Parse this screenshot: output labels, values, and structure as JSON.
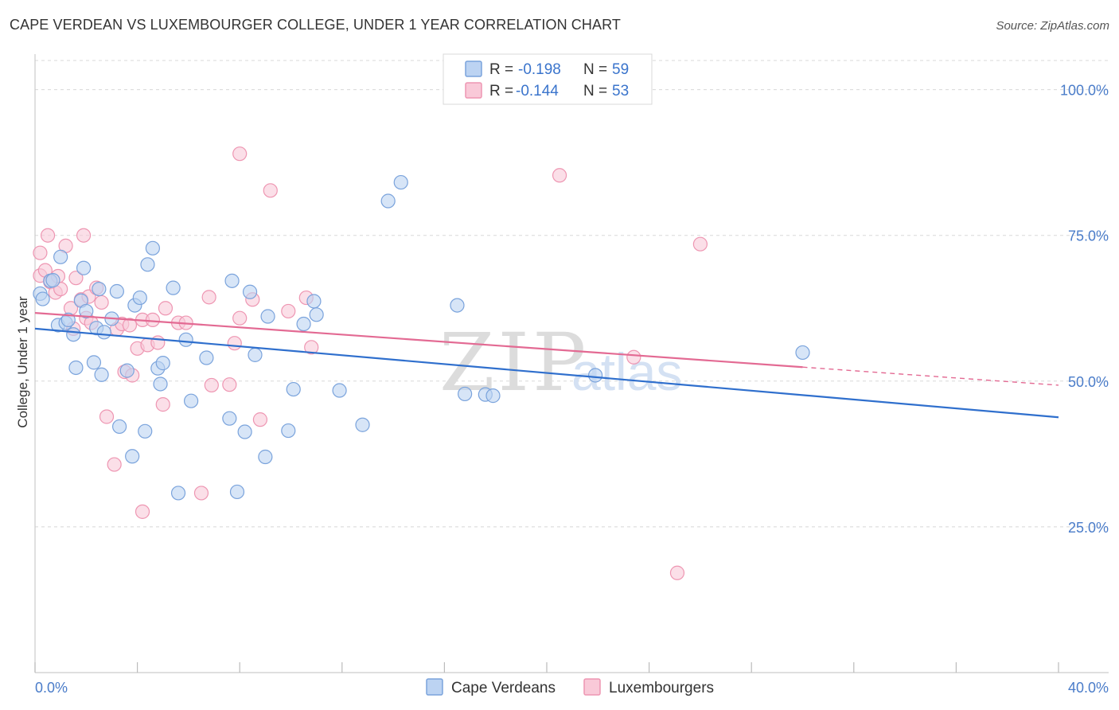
{
  "title": "CAPE VERDEAN VS LUXEMBOURGER COLLEGE, UNDER 1 YEAR CORRELATION CHART",
  "source": "Source: ZipAtlas.com",
  "watermark": {
    "zip": "ZIP",
    "atlas": "atlas"
  },
  "colors": {
    "blue_fill": "#bcd3f2",
    "blue_stroke": "#7aa3dc",
    "blue_line": "#2f6fcd",
    "pink_fill": "#f9c9d8",
    "pink_stroke": "#ee96b2",
    "pink_line": "#e36a93",
    "grid": "#d8d8d8",
    "axis_text": "#4a7cc9"
  },
  "legend": {
    "rows": [
      {
        "r_label": "R =",
        "r_value": "-0.198",
        "n_label": "N =",
        "n_value": "59"
      },
      {
        "r_label": "R =",
        "r_value": "-0.144",
        "n_label": "N =",
        "n_value": "53"
      }
    ]
  },
  "bottom_legend": [
    "Cape Verdeans",
    "Luxembourgers"
  ],
  "chart_data": {
    "type": "scatter",
    "title": "CAPE VERDEAN VS LUXEMBOURGER COLLEGE, UNDER 1 YEAR CORRELATION CHART",
    "xlabel": "",
    "ylabel": "College, Under 1 year",
    "xlim": [
      0,
      40
    ],
    "ylim": [
      0,
      105
    ],
    "x_tick_labels": [
      "0.0%",
      "40.0%"
    ],
    "y_ticks": [
      25,
      50,
      75,
      100
    ],
    "y_tick_labels": [
      "25.0%",
      "50.0%",
      "75.0%",
      "100.0%"
    ],
    "grid": true,
    "series": [
      {
        "name": "Cape Verdeans",
        "trend": {
          "x": [
            0,
            40
          ],
          "y": [
            59.0,
            43.8
          ]
        },
        "points": [
          [
            0.2,
            65.0
          ],
          [
            0.3,
            64.1
          ],
          [
            0.6,
            67.2
          ],
          [
            0.7,
            67.3
          ],
          [
            0.9,
            59.6
          ],
          [
            1.0,
            71.3
          ],
          [
            1.2,
            60.0
          ],
          [
            1.3,
            60.5
          ],
          [
            1.5,
            58.0
          ],
          [
            1.6,
            52.3
          ],
          [
            1.8,
            63.8
          ],
          [
            1.9,
            69.4
          ],
          [
            2.0,
            62.0
          ],
          [
            2.3,
            53.2
          ],
          [
            2.4,
            59.1
          ],
          [
            2.5,
            65.8
          ],
          [
            2.6,
            51.1
          ],
          [
            2.7,
            58.4
          ],
          [
            3.0,
            60.7
          ],
          [
            3.2,
            65.4
          ],
          [
            3.3,
            42.2
          ],
          [
            3.6,
            51.8
          ],
          [
            3.8,
            37.1
          ],
          [
            3.9,
            63.0
          ],
          [
            4.1,
            64.3
          ],
          [
            4.3,
            41.4
          ],
          [
            4.4,
            70.0
          ],
          [
            4.6,
            72.8
          ],
          [
            4.8,
            52.2
          ],
          [
            4.9,
            49.5
          ],
          [
            5.0,
            53.1
          ],
          [
            5.4,
            66.0
          ],
          [
            5.6,
            30.8
          ],
          [
            5.9,
            57.1
          ],
          [
            6.1,
            46.6
          ],
          [
            6.7,
            54.0
          ],
          [
            7.6,
            43.6
          ],
          [
            7.7,
            67.2
          ],
          [
            7.9,
            31.0
          ],
          [
            8.2,
            41.3
          ],
          [
            8.4,
            65.3
          ],
          [
            8.6,
            54.5
          ],
          [
            9.0,
            37.0
          ],
          [
            9.1,
            61.1
          ],
          [
            9.9,
            41.5
          ],
          [
            10.1,
            48.6
          ],
          [
            10.5,
            59.8
          ],
          [
            10.9,
            63.7
          ],
          [
            11.0,
            61.4
          ],
          [
            11.9,
            48.4
          ],
          [
            12.8,
            42.5
          ],
          [
            13.8,
            80.9
          ],
          [
            14.3,
            84.1
          ],
          [
            16.8,
            47.8
          ],
          [
            17.6,
            47.7
          ],
          [
            17.9,
            47.5
          ],
          [
            21.9,
            51.0
          ],
          [
            30.0,
            54.9
          ],
          [
            16.5,
            63.0
          ]
        ]
      },
      {
        "name": "Luxembourgers",
        "trend": {
          "x": [
            0,
            30
          ],
          "y": [
            61.7,
            52.4
          ]
        },
        "trend_dashed": {
          "x": [
            30,
            40
          ],
          "y": [
            52.4,
            49.3
          ]
        },
        "points": [
          [
            0.2,
            72.0
          ],
          [
            0.2,
            68.1
          ],
          [
            0.4,
            69.0
          ],
          [
            0.5,
            75.0
          ],
          [
            0.6,
            67.0
          ],
          [
            0.8,
            65.2
          ],
          [
            0.9,
            68.0
          ],
          [
            1.0,
            65.8
          ],
          [
            1.2,
            73.2
          ],
          [
            1.4,
            62.5
          ],
          [
            1.5,
            59.0
          ],
          [
            1.6,
            67.7
          ],
          [
            1.8,
            64.0
          ],
          [
            1.9,
            75.0
          ],
          [
            2.0,
            60.8
          ],
          [
            2.1,
            64.5
          ],
          [
            2.2,
            60.0
          ],
          [
            2.4,
            66.0
          ],
          [
            2.6,
            63.5
          ],
          [
            2.8,
            43.9
          ],
          [
            3.1,
            35.7
          ],
          [
            3.2,
            58.9
          ],
          [
            3.4,
            59.8
          ],
          [
            3.5,
            51.6
          ],
          [
            3.7,
            59.6
          ],
          [
            3.8,
            51.0
          ],
          [
            4.0,
            55.6
          ],
          [
            4.2,
            27.6
          ],
          [
            4.2,
            60.5
          ],
          [
            4.4,
            56.2
          ],
          [
            4.6,
            60.5
          ],
          [
            4.8,
            56.6
          ],
          [
            5.0,
            46.0
          ],
          [
            5.1,
            62.5
          ],
          [
            5.6,
            60.0
          ],
          [
            5.9,
            60.0
          ],
          [
            6.5,
            30.8
          ],
          [
            6.8,
            64.4
          ],
          [
            6.9,
            49.3
          ],
          [
            7.6,
            49.4
          ],
          [
            7.8,
            56.5
          ],
          [
            8.0,
            60.8
          ],
          [
            8.0,
            89.0
          ],
          [
            8.5,
            64.0
          ],
          [
            8.8,
            43.4
          ],
          [
            9.2,
            82.7
          ],
          [
            9.9,
            62.0
          ],
          [
            10.6,
            64.3
          ],
          [
            10.8,
            55.8
          ],
          [
            20.5,
            85.3
          ],
          [
            23.4,
            54.1
          ],
          [
            25.1,
            17.1
          ],
          [
            26.0,
            73.5
          ]
        ]
      }
    ]
  }
}
